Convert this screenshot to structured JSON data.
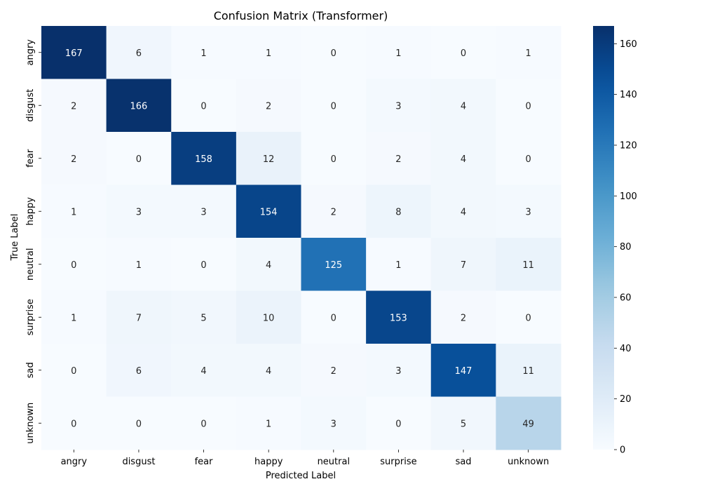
{
  "chart_data": {
    "type": "heatmap",
    "title": "Confusion Matrix (Transformer)",
    "xlabel": "Predicted Label",
    "ylabel": "True Label",
    "x_categories": [
      "angry",
      "disgust",
      "fear",
      "happy",
      "neutral",
      "surprise",
      "sad",
      "unknown"
    ],
    "y_categories": [
      "angry",
      "disgust",
      "fear",
      "happy",
      "neutral",
      "surprise",
      "sad",
      "unknown"
    ],
    "values": [
      [
        167,
        6,
        1,
        1,
        0,
        1,
        0,
        1
      ],
      [
        2,
        166,
        0,
        2,
        0,
        3,
        4,
        0
      ],
      [
        2,
        0,
        158,
        12,
        0,
        2,
        4,
        0
      ],
      [
        1,
        3,
        3,
        154,
        2,
        8,
        4,
        3
      ],
      [
        0,
        1,
        0,
        4,
        125,
        1,
        7,
        11
      ],
      [
        1,
        7,
        5,
        10,
        0,
        153,
        2,
        0
      ],
      [
        0,
        6,
        4,
        4,
        2,
        3,
        147,
        11
      ],
      [
        0,
        0,
        0,
        1,
        3,
        0,
        5,
        49
      ]
    ],
    "colorscale": "Blues",
    "colorbar": {
      "range": [
        0,
        167
      ],
      "ticks": [
        0,
        20,
        40,
        60,
        80,
        100,
        120,
        140,
        160
      ]
    }
  }
}
